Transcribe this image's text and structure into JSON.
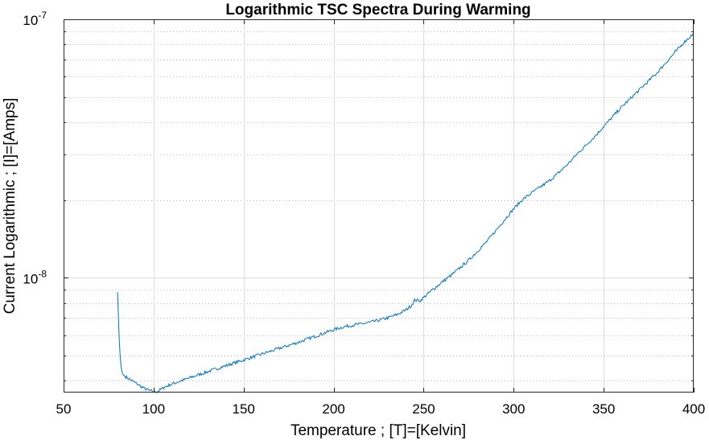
{
  "chart_data": {
    "type": "line",
    "title": "Logarithmic TSC Spectra During Warming",
    "xlabel": "Temperature ; [T]=[Kelvin]",
    "ylabel": "Current Logarithmic ; [I]=[Amps]",
    "xlim": [
      50,
      400
    ],
    "ylim": [
      3.6e-09,
      1e-07
    ],
    "yscale": "log",
    "grid": true,
    "minor_grid": true,
    "x_ticks": [
      "50",
      "100",
      "150",
      "200",
      "250",
      "300",
      "350",
      "400"
    ],
    "y_ticks": [
      {
        "base": "10",
        "exp": "-8",
        "value": 1e-08
      },
      {
        "base": "10",
        "exp": "-7",
        "value": 1e-07
      }
    ],
    "color": "#0072bd",
    "series": [
      {
        "x": [
          80,
          80.5,
          81,
          81.5,
          82,
          82.5,
          83,
          85,
          88,
          91,
          94,
          97,
          100,
          102,
          104,
          106,
          110,
          115,
          120,
          125,
          130,
          135,
          140,
          145,
          150,
          155,
          160,
          165,
          170,
          175,
          180,
          185,
          190,
          195,
          200,
          205,
          210,
          215,
          220,
          225,
          230,
          235,
          240,
          243,
          245,
          248,
          250,
          255,
          260,
          265,
          270,
          275,
          280,
          285,
          290,
          295,
          300,
          305,
          310,
          315,
          320,
          325,
          330,
          335,
          340,
          345,
          350,
          355,
          360,
          365,
          370,
          375,
          380,
          385,
          390,
          395,
          400
        ],
        "y": [
          8.8e-09,
          7e-09,
          5.6e-09,
          4.9e-09,
          4.5e-09,
          4.32e-09,
          4.22e-09,
          4.12e-09,
          4e-09,
          3.88e-09,
          3.76e-09,
          3.68e-09,
          3.62e-09,
          3.63e-09,
          3.7e-09,
          3.78e-09,
          3.88e-09,
          3.99e-09,
          4.1e-09,
          4.22e-09,
          4.33e-09,
          4.45e-09,
          4.57e-09,
          4.69e-09,
          4.81e-09,
          4.94e-09,
          5.07e-09,
          5.2e-09,
          5.34e-09,
          5.48e-09,
          5.62e-09,
          5.78e-09,
          5.95e-09,
          6.12e-09,
          6.3e-09,
          6.45e-09,
          6.55e-09,
          6.63e-09,
          6.72e-09,
          6.85e-09,
          7e-09,
          7.2e-09,
          7.5e-09,
          7.8e-09,
          8.2e-09,
          8.15e-09,
          8.4e-09,
          9e-09,
          9.6e-09,
          1.02e-08,
          1.09e-08,
          1.17e-08,
          1.27e-08,
          1.38e-08,
          1.52e-08,
          1.68e-08,
          1.85e-08,
          2.01e-08,
          2.13e-08,
          2.25e-08,
          2.38e-08,
          2.55e-08,
          2.75e-08,
          3e-08,
          3.25e-08,
          3.52e-08,
          3.85e-08,
          4.2e-08,
          4.58e-08,
          4.95e-08,
          5.35e-08,
          5.78e-08,
          6.25e-08,
          6.85e-08,
          7.5e-08,
          8.2e-08,
          8.8e-08
        ]
      }
    ]
  }
}
